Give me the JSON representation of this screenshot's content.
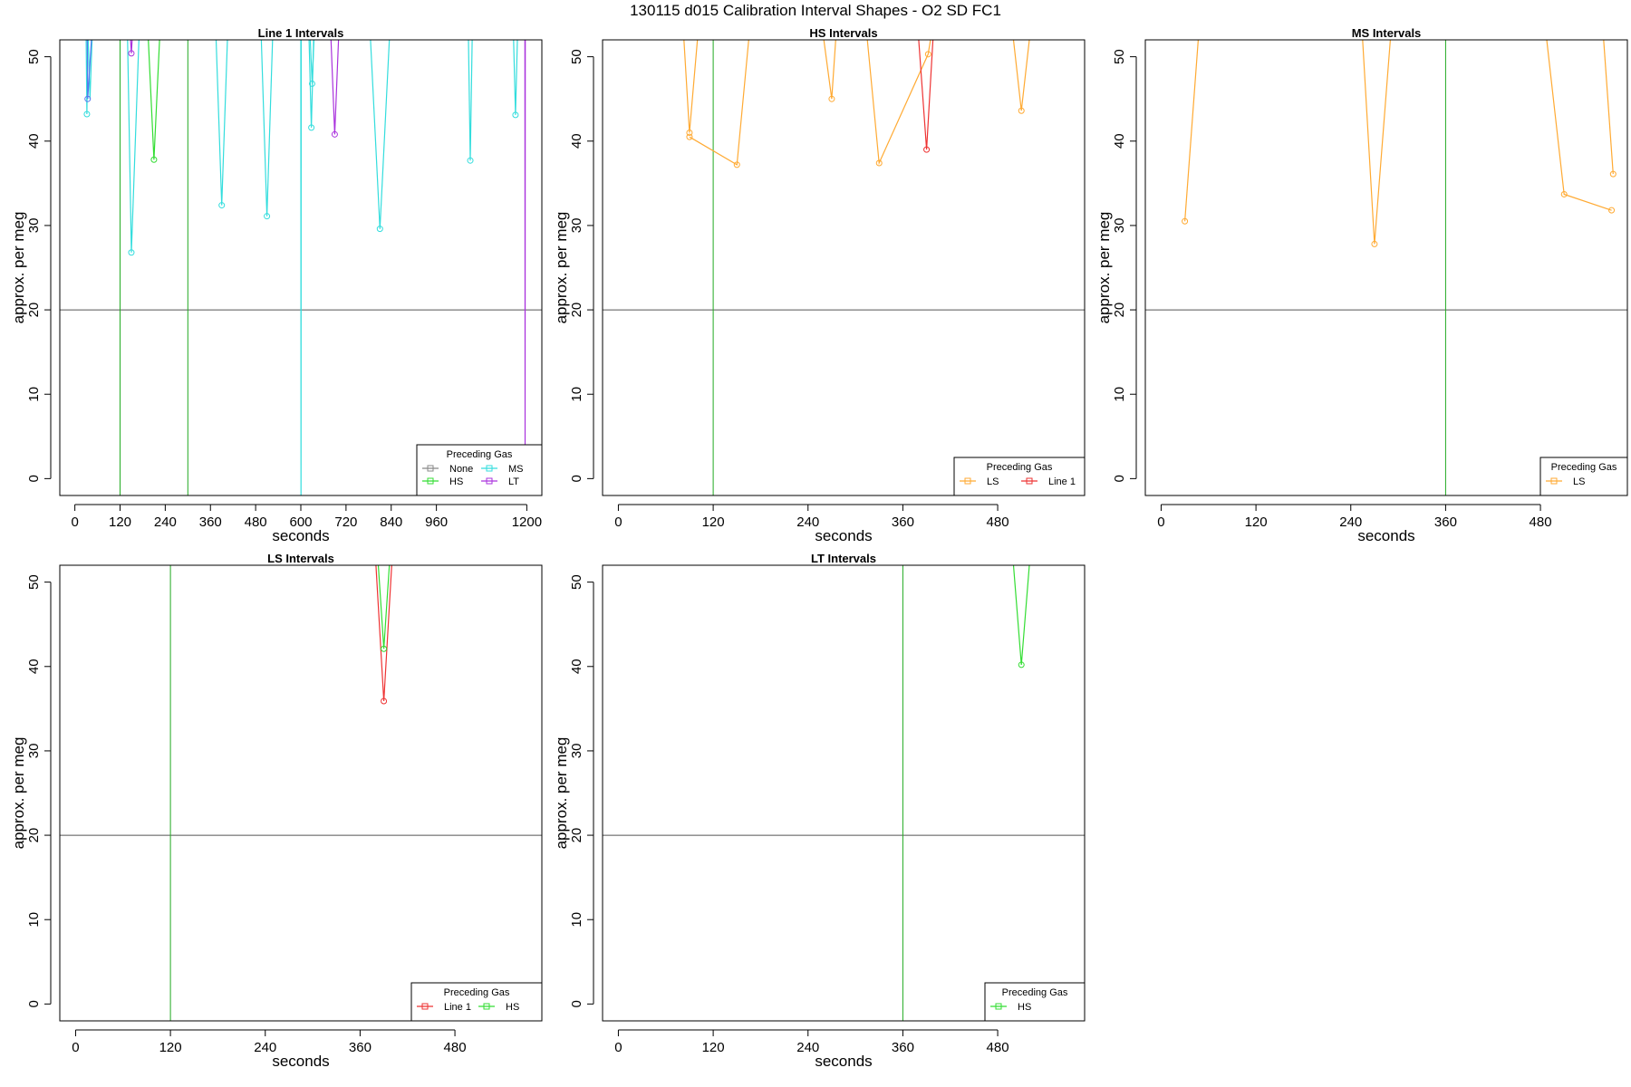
{
  "page": {
    "title": "130115   d015   Calibration Interval Shapes - O2 SD FC1"
  },
  "chart_data": [
    {
      "type": "line",
      "title": "Line 1 Intervals",
      "xlabel": "seconds",
      "ylabel": "approx. per meg",
      "xlim": [
        -40,
        1240
      ],
      "ylim": [
        -2,
        52
      ],
      "xticks": [
        0,
        120,
        240,
        360,
        480,
        600,
        720,
        840,
        960,
        1200
      ],
      "xtick_labels": [
        "0",
        "120",
        "240",
        "360",
        "480",
        "600",
        "720",
        "840",
        "960",
        "1200"
      ],
      "yticks": [
        0,
        10,
        20,
        30,
        40,
        50
      ],
      "ytick_labels": [
        "0",
        "10",
        "20",
        "30",
        "40",
        "50"
      ],
      "hline": 20,
      "vlines": [
        {
          "x": 120,
          "color": "#22aa22"
        },
        {
          "x": 300,
          "color": "#22aa22"
        }
      ],
      "legend": {
        "title": "Preceding Gas",
        "position": "bottom-right",
        "columns": 2,
        "entries": [
          {
            "name": "None",
            "color": "#888888"
          },
          {
            "name": "MS",
            "color": "#33dddd"
          },
          {
            "name": "HS",
            "color": "#33dd33"
          },
          {
            "name": "LT",
            "color": "#aa33dd"
          }
        ]
      },
      "series": [
        {
          "name": "MS",
          "color": "#33dddd",
          "x": [
            30,
            40,
            52
          ],
          "y": [
            60,
            45,
            60
          ]
        },
        {
          "name": "MS",
          "color": "#33dddd",
          "x": [
            30,
            32,
            34
          ],
          "y": [
            52,
            43.2,
            52
          ]
        },
        {
          "name": "LT",
          "color": "#5577ee",
          "x": [
            33,
            34,
            44
          ],
          "y": [
            52,
            45,
            52
          ]
        },
        {
          "name": "MS",
          "color": "#33dddd",
          "x": [
            140,
            150,
            170
          ],
          "y": [
            52,
            26.8,
            52
          ]
        },
        {
          "name": "LT",
          "color": "#aa33dd",
          "x": [
            148,
            150,
            152
          ],
          "y": [
            52,
            50.4,
            52
          ]
        },
        {
          "name": "HS",
          "color": "#33dd33",
          "x": [
            195,
            210,
            225
          ],
          "y": [
            52,
            37.8,
            52
          ]
        },
        {
          "name": "MS",
          "color": "#33dddd",
          "x": [
            375,
            390,
            405
          ],
          "y": [
            52,
            32.4,
            52
          ]
        },
        {
          "name": "MS",
          "color": "#33dddd",
          "x": [
            495,
            510,
            525
          ],
          "y": [
            52,
            31.1,
            52
          ]
        },
        {
          "name": "MS",
          "color": "#33dddd",
          "x": [
            600,
            600.5,
            601
          ],
          "y": [
            52,
            -2,
            52
          ]
        },
        {
          "name": "MS",
          "color": "#33dddd",
          "x": [
            622,
            628,
            634
          ],
          "y": [
            52,
            41.6,
            52
          ]
        },
        {
          "name": "MS",
          "color": "#33dddd",
          "x": [
            625,
            630,
            635
          ],
          "y": [
            52,
            46.8,
            52
          ]
        },
        {
          "name": "LT",
          "color": "#aa33dd",
          "x": [
            680,
            690,
            700
          ],
          "y": [
            52,
            40.8,
            52
          ]
        },
        {
          "name": "MS",
          "color": "#33dddd",
          "x": [
            785,
            810,
            835
          ],
          "y": [
            52,
            29.6,
            52
          ]
        },
        {
          "name": "MS",
          "color": "#33dddd",
          "x": [
            1045,
            1050,
            1055
          ],
          "y": [
            52,
            37.7,
            52
          ]
        },
        {
          "name": "MS",
          "color": "#33dddd",
          "x": [
            1165,
            1170,
            1175
          ],
          "y": [
            52,
            43.1,
            52
          ]
        },
        {
          "name": "LT",
          "color": "#aa33dd",
          "x": [
            1195,
            1195.5,
            1196
          ],
          "y": [
            52,
            3.5,
            52
          ]
        }
      ],
      "markers": [
        {
          "color": "#33dddd",
          "x": 32,
          "y": 43.2
        },
        {
          "color": "#5577ee",
          "x": 34,
          "y": 45
        },
        {
          "color": "#33dddd",
          "x": 150,
          "y": 26.8
        },
        {
          "color": "#aa33dd",
          "x": 150,
          "y": 50.4
        },
        {
          "color": "#33dd33",
          "x": 210,
          "y": 37.8
        },
        {
          "color": "#33dddd",
          "x": 390,
          "y": 32.4
        },
        {
          "color": "#33dddd",
          "x": 510,
          "y": 31.1
        },
        {
          "color": "#33dddd",
          "x": 628,
          "y": 41.6
        },
        {
          "color": "#33dddd",
          "x": 630,
          "y": 46.8
        },
        {
          "color": "#aa33dd",
          "x": 690,
          "y": 40.8
        },
        {
          "color": "#33dddd",
          "x": 810,
          "y": 29.6
        },
        {
          "color": "#33dddd",
          "x": 1050,
          "y": 37.7
        },
        {
          "color": "#33dddd",
          "x": 1170,
          "y": 43.1
        }
      ]
    },
    {
      "type": "line",
      "title": "HS Intervals",
      "xlabel": "seconds",
      "ylabel": "approx. per meg",
      "xlim": [
        -20,
        590
      ],
      "ylim": [
        -2,
        52
      ],
      "xticks": [
        0,
        120,
        240,
        360,
        480
      ],
      "xtick_labels": [
        "0",
        "120",
        "240",
        "360",
        "480"
      ],
      "yticks": [
        0,
        10,
        20,
        30,
        40,
        50
      ],
      "ytick_labels": [
        "0",
        "10",
        "20",
        "30",
        "40",
        "50"
      ],
      "hline": 20,
      "vlines": [
        {
          "x": 120,
          "color": "#22aa22"
        }
      ],
      "legend": {
        "title": "Preceding Gas",
        "position": "bottom-right",
        "columns": 2,
        "entries": [
          {
            "name": "LS",
            "color": "#ffaa33"
          },
          {
            "name": "Line 1",
            "color": "#ee3333"
          }
        ]
      },
      "series": [
        {
          "name": "LS",
          "color": "#ffaa33",
          "x": [
            83,
            90,
            100
          ],
          "y": [
            52,
            41,
            52
          ]
        },
        {
          "name": "LS",
          "color": "#ffaa33",
          "x": [
            90,
            150,
            165
          ],
          "y": [
            40.5,
            37.2,
            52
          ]
        },
        {
          "name": "LS",
          "color": "#ffaa33",
          "x": [
            260,
            270,
            275
          ],
          "y": [
            52,
            45,
            52
          ]
        },
        {
          "name": "LS",
          "color": "#ffaa33",
          "x": [
            315,
            330,
            392,
            395
          ],
          "y": [
            52,
            37.4,
            50.3,
            52
          ]
        },
        {
          "name": "Line 1",
          "color": "#ee3333",
          "x": [
            380,
            390,
            398
          ],
          "y": [
            52,
            39,
            52
          ]
        },
        {
          "name": "LS",
          "color": "#ffaa33",
          "x": [
            500,
            510,
            520
          ],
          "y": [
            52,
            43.6,
            52
          ]
        }
      ],
      "markers": [
        {
          "color": "#ffaa33",
          "x": 90,
          "y": 41
        },
        {
          "color": "#ffaa33",
          "x": 90,
          "y": 40.5
        },
        {
          "color": "#ffaa33",
          "x": 150,
          "y": 37.2
        },
        {
          "color": "#ffaa33",
          "x": 270,
          "y": 45
        },
        {
          "color": "#ffaa33",
          "x": 330,
          "y": 37.4
        },
        {
          "color": "#ffaa33",
          "x": 392,
          "y": 50.3
        },
        {
          "color": "#ee3333",
          "x": 390,
          "y": 39
        },
        {
          "color": "#ffaa33",
          "x": 510,
          "y": 43.6
        }
      ]
    },
    {
      "type": "line",
      "title": "MS Intervals",
      "xlabel": "seconds",
      "ylabel": "approx. per meg",
      "xlim": [
        -20,
        590
      ],
      "ylim": [
        -2,
        52
      ],
      "xticks": [
        0,
        120,
        240,
        360,
        480
      ],
      "xtick_labels": [
        "0",
        "120",
        "240",
        "360",
        "480"
      ],
      "yticks": [
        0,
        10,
        20,
        30,
        40,
        50
      ],
      "ytick_labels": [
        "0",
        "10",
        "20",
        "30",
        "40",
        "50"
      ],
      "hline": 20,
      "vlines": [
        {
          "x": 360,
          "color": "#22aa22"
        }
      ],
      "legend": {
        "title": "Preceding Gas",
        "position": "bottom-right",
        "columns": 1,
        "entries": [
          {
            "name": "LS",
            "color": "#ffaa33"
          }
        ]
      },
      "series": [
        {
          "name": "LS",
          "color": "#ffaa33",
          "x": [
            30,
            47
          ],
          "y": [
            30.5,
            52
          ]
        },
        {
          "name": "LS",
          "color": "#ffaa33",
          "x": [
            255,
            270,
            290
          ],
          "y": [
            52,
            27.8,
            52
          ]
        },
        {
          "name": "LS",
          "color": "#ffaa33",
          "x": [
            488,
            510,
            570
          ],
          "y": [
            52,
            33.7,
            31.8
          ]
        },
        {
          "name": "LS",
          "color": "#ffaa33",
          "x": [
            560,
            572
          ],
          "y": [
            52,
            36.1
          ]
        }
      ],
      "markers": [
        {
          "color": "#ffaa33",
          "x": 30,
          "y": 30.5
        },
        {
          "color": "#ffaa33",
          "x": 270,
          "y": 27.8
        },
        {
          "color": "#ffaa33",
          "x": 510,
          "y": 33.7
        },
        {
          "color": "#ffaa33",
          "x": 570,
          "y": 31.8
        },
        {
          "color": "#ffaa33",
          "x": 572,
          "y": 36.1
        }
      ]
    },
    {
      "type": "line",
      "title": "LS Intervals",
      "xlabel": "seconds",
      "ylabel": "approx. per meg",
      "xlim": [
        -20,
        590
      ],
      "ylim": [
        -2,
        52
      ],
      "xticks": [
        0,
        120,
        240,
        360,
        480
      ],
      "xtick_labels": [
        "0",
        "120",
        "240",
        "360",
        "480"
      ],
      "yticks": [
        0,
        10,
        20,
        30,
        40,
        50
      ],
      "ytick_labels": [
        "0",
        "10",
        "20",
        "30",
        "40",
        "50"
      ],
      "hline": 20,
      "vlines": [
        {
          "x": 120,
          "color": "#22aa22"
        }
      ],
      "legend": {
        "title": "Preceding Gas",
        "position": "bottom-right",
        "columns": 2,
        "entries": [
          {
            "name": "Line 1",
            "color": "#ee3333"
          },
          {
            "name": "HS",
            "color": "#33dd33"
          }
        ]
      },
      "series": [
        {
          "name": "Line 1",
          "color": "#ee3333",
          "x": [
            380,
            390,
            400
          ],
          "y": [
            52,
            35.9,
            52
          ]
        },
        {
          "name": "HS",
          "color": "#33dd33",
          "x": [
            383,
            390,
            397
          ],
          "y": [
            52,
            42.1,
            52
          ]
        }
      ],
      "markers": [
        {
          "color": "#ee3333",
          "x": 390,
          "y": 35.9
        },
        {
          "color": "#33dd33",
          "x": 390,
          "y": 42.1
        }
      ]
    },
    {
      "type": "line",
      "title": "LT Intervals",
      "xlabel": "seconds",
      "ylabel": "approx. per meg",
      "xlim": [
        -20,
        590
      ],
      "ylim": [
        -2,
        52
      ],
      "xticks": [
        0,
        120,
        240,
        360,
        480
      ],
      "xtick_labels": [
        "0",
        "120",
        "240",
        "360",
        "480"
      ],
      "yticks": [
        0,
        10,
        20,
        30,
        40,
        50
      ],
      "ytick_labels": [
        "0",
        "10",
        "20",
        "30",
        "40",
        "50"
      ],
      "hline": 20,
      "vlines": [
        {
          "x": 360,
          "color": "#22aa22"
        }
      ],
      "legend": {
        "title": "Preceding Gas",
        "position": "bottom-right",
        "columns": 1,
        "entries": [
          {
            "name": "HS",
            "color": "#33dd33"
          }
        ]
      },
      "series": [
        {
          "name": "HS",
          "color": "#33dd33",
          "x": [
            500,
            510,
            520
          ],
          "y": [
            52,
            40.2,
            52
          ]
        }
      ],
      "markers": [
        {
          "color": "#33dd33",
          "x": 510,
          "y": 40.2
        }
      ]
    }
  ]
}
